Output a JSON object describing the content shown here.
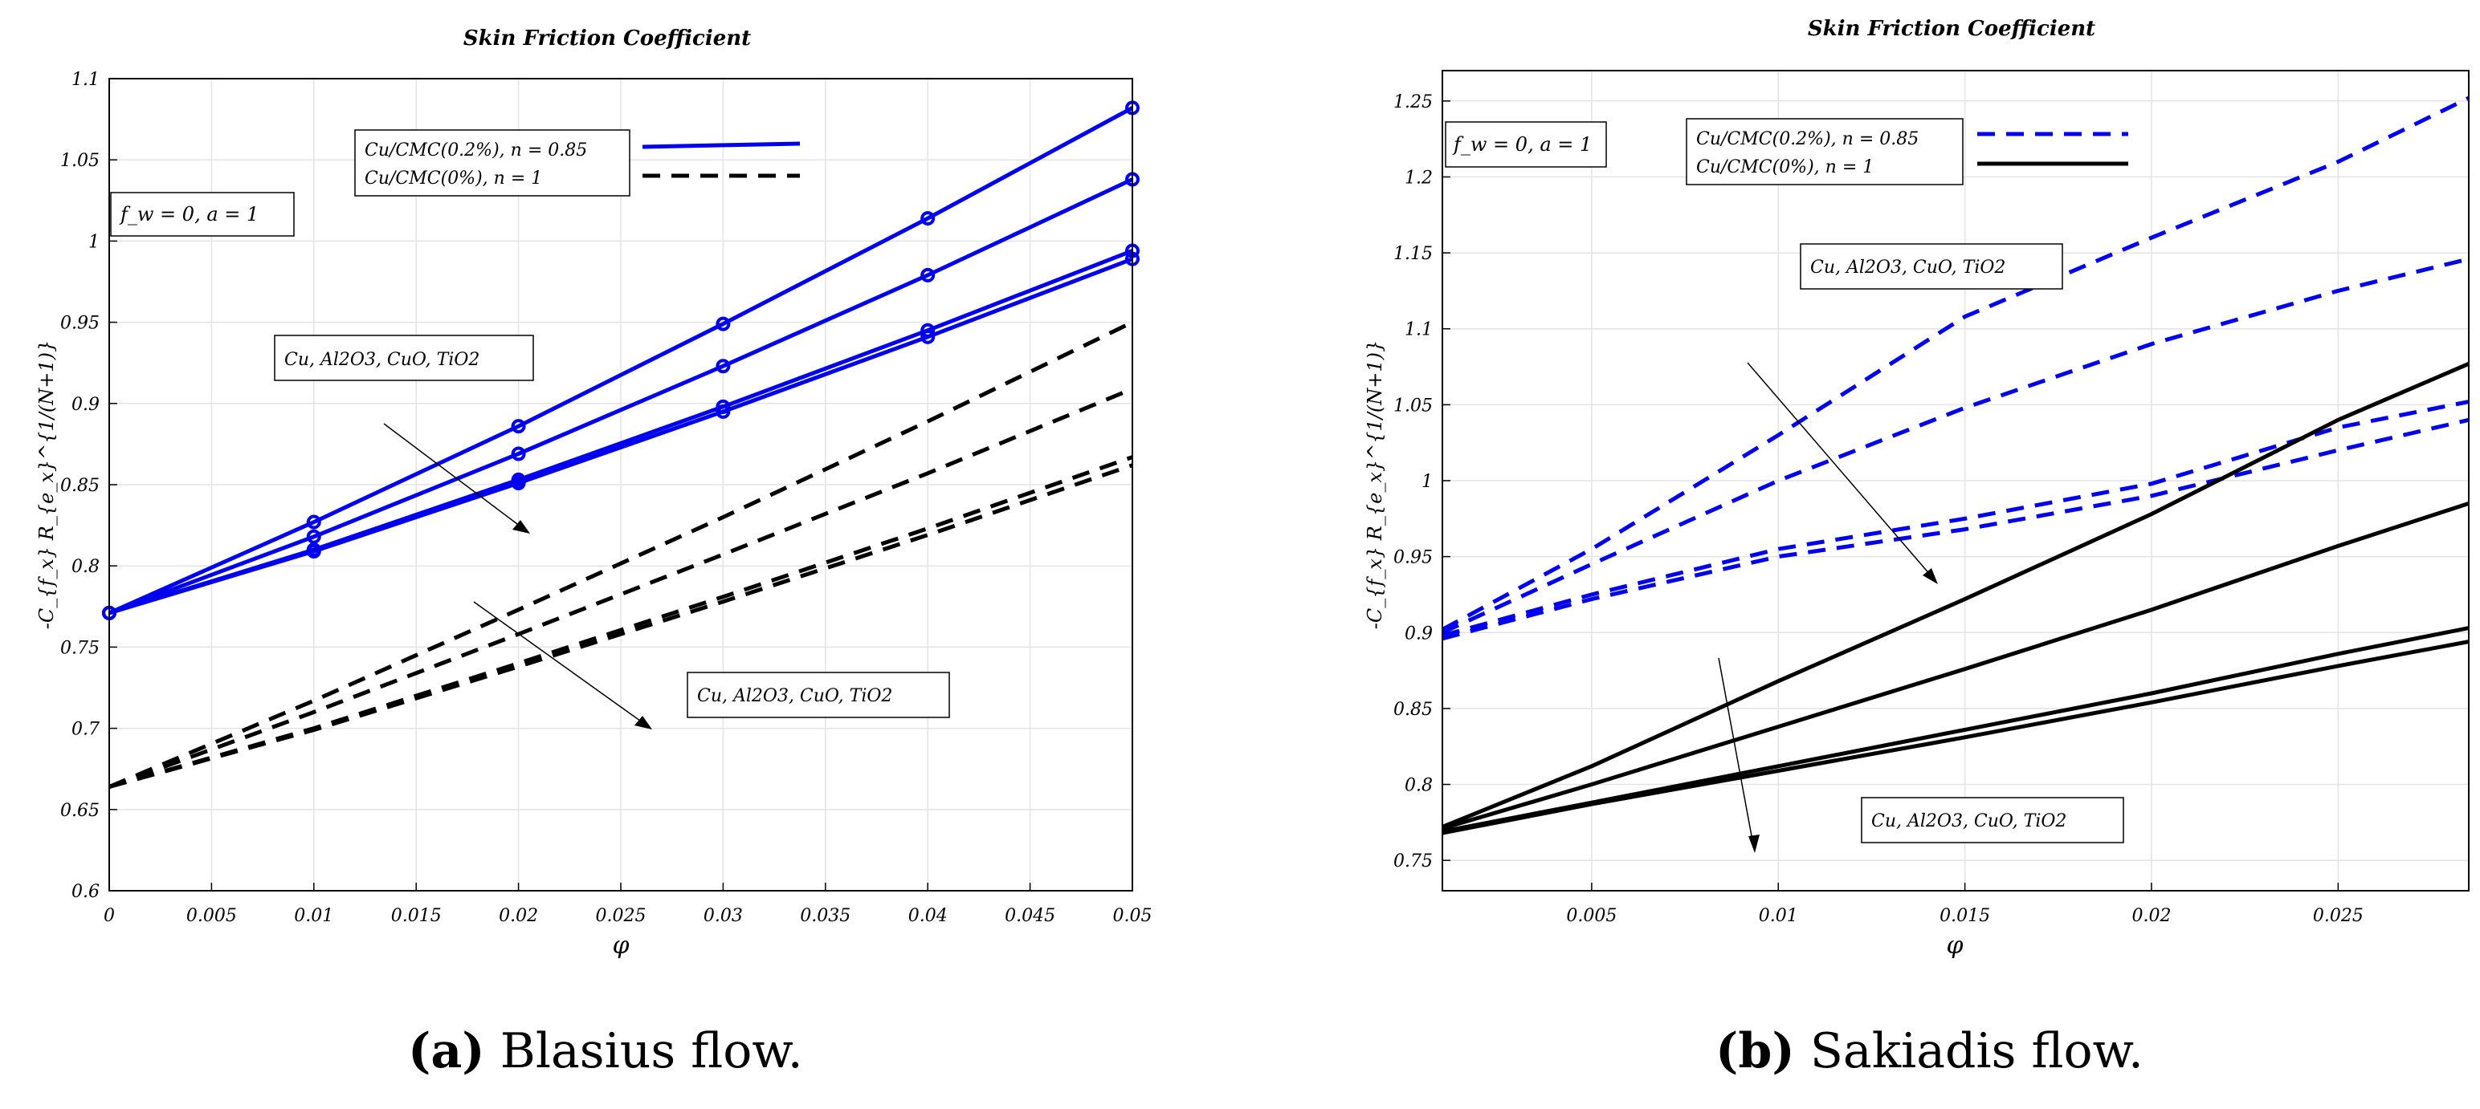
{
  "chart_data": [
    {
      "type": "line",
      "title": "Skin Friction Coefficient",
      "xlabel": "φ",
      "ylabel": "-C_{f_x} R_{e_x}^{1/(N+1)}",
      "xlim": [
        0,
        0.05
      ],
      "ylim": [
        0.6,
        1.1
      ],
      "xticks": [
        "0",
        "0.005",
        "0.01",
        "0.015",
        "0.02",
        "0.025",
        "0.03",
        "0.035",
        "0.04",
        "0.045",
        "0.05"
      ],
      "yticks": [
        "0.6",
        "0.65",
        "0.7",
        "0.75",
        "0.8",
        "0.85",
        "0.9",
        "0.95",
        "1",
        "1.05",
        "1.1"
      ],
      "grid": true,
      "legend": [
        "Cu/CMC(0.2%), n = 0.85",
        "Cu/CMC(0%), n = 1"
      ],
      "param_box": "f_w = 0, a = 1",
      "annotations": [
        "Cu, Al2O3, CuO, TiO2",
        "Cu, Al2O3, CuO, TiO2"
      ],
      "x": [
        0,
        0.01,
        0.02,
        0.03,
        0.04,
        0.05
      ],
      "series": [
        {
          "name": "Cu, n=0.85",
          "style": "solid-marker",
          "color": "#0000ee",
          "values": [
            0.771,
            0.827,
            0.886,
            0.949,
            1.014,
            1.082
          ]
        },
        {
          "name": "Al2O3, n=0.85",
          "style": "solid-marker",
          "color": "#0000ee",
          "values": [
            0.771,
            0.818,
            0.869,
            0.923,
            0.979,
            1.038
          ]
        },
        {
          "name": "CuO, n=0.85",
          "style": "solid-marker",
          "color": "#0000ee",
          "values": [
            0.771,
            0.81,
            0.853,
            0.898,
            0.945,
            0.994
          ]
        },
        {
          "name": "TiO2, n=0.85",
          "style": "solid-marker",
          "color": "#0000ee",
          "values": [
            0.771,
            0.809,
            0.851,
            0.895,
            0.941,
            0.989
          ]
        },
        {
          "name": "Cu, n=1",
          "style": "dashed",
          "color": "#000000",
          "values": [
            0.664,
            0.717,
            0.773,
            0.83,
            0.889,
            0.95
          ]
        },
        {
          "name": "Al2O3, n=1",
          "style": "dashed",
          "color": "#000000",
          "values": [
            0.664,
            0.71,
            0.758,
            0.807,
            0.857,
            0.909
          ]
        },
        {
          "name": "CuO, n=1",
          "style": "dashed",
          "color": "#000000",
          "values": [
            0.664,
            0.7,
            0.74,
            0.781,
            0.823,
            0.867
          ]
        },
        {
          "name": "TiO2, n=1",
          "style": "dashed",
          "color": "#000000",
          "values": [
            0.664,
            0.699,
            0.738,
            0.778,
            0.819,
            0.862
          ]
        }
      ]
    },
    {
      "type": "line",
      "title": "Skin Friction Coefficient",
      "xlabel": "φ",
      "ylabel": "-C_{f_x} R_{e_x}^{1/(N+1)}",
      "xlim": [
        0.001,
        0.0285
      ],
      "ylim": [
        0.73,
        1.27
      ],
      "xticks": [
        "0.005",
        "0.01",
        "0.015",
        "0.02",
        "0.025"
      ],
      "yticks": [
        "0.75",
        "0.8",
        "0.85",
        "0.9",
        "0.95",
        "1",
        "1.05",
        "1.1",
        "1.15",
        "1.2",
        "1.25"
      ],
      "grid": true,
      "legend": [
        "Cu/CMC(0.2%), n = 0.85",
        "Cu/CMC(0%), n = 1"
      ],
      "param_box": "f_w = 0, a = 1",
      "annotations": [
        "Cu, Al2O3, CuO, TiO2",
        "Cu, Al2O3, CuO, TiO2"
      ],
      "x": [
        0.001,
        0.005,
        0.01,
        0.015,
        0.02,
        0.025,
        0.0285
      ],
      "series": [
        {
          "name": "Cu, n=0.85",
          "style": "dashed",
          "color": "#0000ee",
          "values": [
            0.902,
            0.955,
            1.03,
            1.108,
            1.16,
            1.21,
            1.252
          ]
        },
        {
          "name": "Al2O3, n=0.85",
          "style": "dashed",
          "color": "#0000ee",
          "values": [
            0.9,
            0.945,
            1.0,
            1.048,
            1.09,
            1.125,
            1.146
          ]
        },
        {
          "name": "CuO, n=0.85",
          "style": "dashed",
          "color": "#0000ee",
          "values": [
            0.898,
            0.925,
            0.955,
            0.975,
            0.998,
            1.035,
            1.052
          ]
        },
        {
          "name": "TiO2, n=0.85",
          "style": "dashed",
          "color": "#0000ee",
          "values": [
            0.896,
            0.922,
            0.95,
            0.968,
            0.99,
            1.02,
            1.04
          ]
        },
        {
          "name": "Cu, n=1",
          "style": "solid",
          "color": "#000000",
          "values": [
            0.772,
            0.812,
            0.868,
            0.922,
            0.978,
            1.04,
            1.077
          ]
        },
        {
          "name": "Al2O3, n=1",
          "style": "solid",
          "color": "#000000",
          "values": [
            0.771,
            0.8,
            0.838,
            0.876,
            0.915,
            0.957,
            0.985
          ]
        },
        {
          "name": "CuO, n=1",
          "style": "solid",
          "color": "#000000",
          "values": [
            0.769,
            0.788,
            0.812,
            0.836,
            0.86,
            0.886,
            0.903
          ]
        },
        {
          "name": "TiO2, n=1",
          "style": "solid",
          "color": "#000000",
          "values": [
            0.768,
            0.787,
            0.809,
            0.831,
            0.854,
            0.878,
            0.894
          ]
        }
      ]
    }
  ],
  "captions": [
    {
      "letter": "(a)",
      "text": "Blasius flow."
    },
    {
      "letter": "(b)",
      "text": "Sakiadis flow."
    }
  ]
}
